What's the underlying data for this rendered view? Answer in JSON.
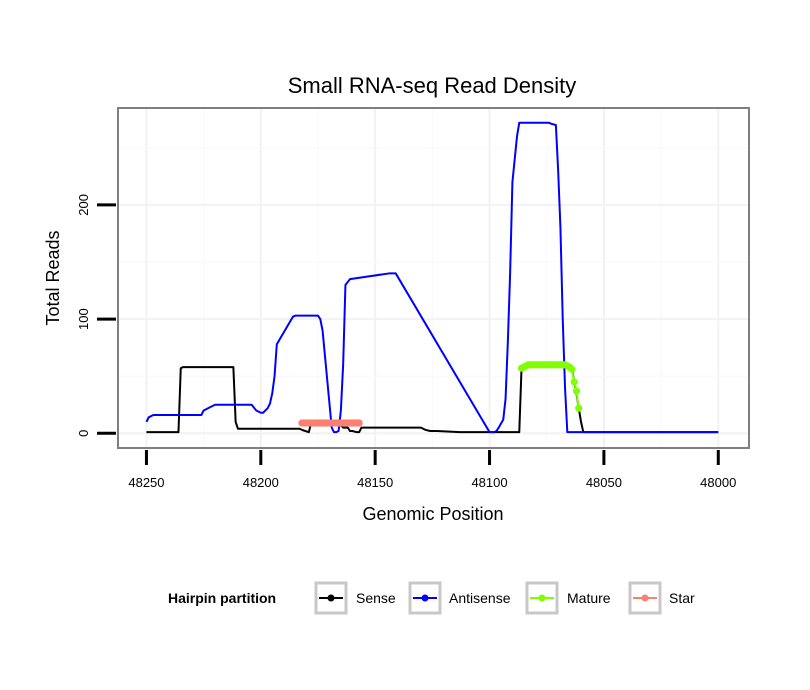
{
  "chart_data": {
    "type": "line",
    "title": "Small RNA-seq Read Density",
    "xlabel": "Genomic Position",
    "ylabel": "Total Reads",
    "xlim": [
      48262,
      47987
    ],
    "ylim": [
      -12,
      284
    ],
    "x_reversed": true,
    "x_ticks": [
      48250,
      48200,
      48150,
      48100,
      48050,
      48000
    ],
    "x_tick_labels": [
      "48250",
      "48200",
      "48150",
      "48100",
      "48050",
      "48000"
    ],
    "y_ticks": [
      0,
      100,
      200
    ],
    "y_tick_labels": [
      "0",
      "100",
      "200"
    ],
    "grid": true,
    "legend": {
      "title": "Hairpin partition",
      "position": "bottom",
      "entries": [
        {
          "label": "Sense",
          "color": "#000000"
        },
        {
          "label": "Antisense",
          "color": "#0000ff"
        },
        {
          "label": "Mature",
          "color": "#80ff00"
        },
        {
          "label": "Star",
          "color": "#fa8072"
        }
      ]
    },
    "series": [
      {
        "name": "Sense",
        "color": "#000000",
        "style": "line",
        "x": [
          48250,
          48236,
          48235,
          48234,
          48212,
          48211,
          48210,
          48183,
          48182,
          48179,
          48178,
          48168,
          48167,
          48165,
          48164,
          48162,
          48161,
          48160,
          48158,
          48157,
          48156,
          48130,
          48128,
          48126,
          48123,
          48113,
          48101,
          48087,
          48086,
          48085,
          48084,
          48066,
          48065,
          48064,
          48063,
          48062,
          48061,
          48060,
          48059,
          48000
        ],
        "y": [
          1,
          1,
          57,
          58,
          58,
          10,
          4,
          4,
          3,
          1,
          9,
          9,
          7,
          7,
          5,
          5,
          2,
          2,
          1,
          1,
          5,
          5,
          3,
          2,
          2,
          1,
          1,
          1,
          58,
          60,
          61,
          61,
          60,
          58,
          45,
          35,
          22,
          10,
          1,
          1
        ]
      },
      {
        "name": "Antisense",
        "color": "#0000ff",
        "style": "line",
        "x": [
          48250,
          48249,
          48247,
          48244,
          48226,
          48225,
          48222,
          48220,
          48209,
          48207,
          48204,
          48202,
          48200,
          48199,
          48197,
          48196,
          48195,
          48194,
          48193,
          48186,
          48185,
          48179,
          48178,
          48177,
          48176,
          48175,
          48174,
          48173,
          48169,
          48168,
          48167,
          48166,
          48165,
          48164,
          48163,
          48161,
          48144,
          48143,
          48142,
          48141,
          48100,
          48098,
          48097,
          48096,
          48094,
          48093,
          48092,
          48091,
          48090,
          48089,
          48088,
          48087,
          48080,
          48078,
          48077,
          48076,
          48075,
          48074,
          48073,
          48071,
          48070,
          48069,
          48068,
          48067,
          48066,
          48000
        ],
        "y": [
          10,
          14,
          16,
          16,
          16,
          20,
          23,
          25,
          25,
          25,
          25,
          20,
          18,
          18,
          22,
          26,
          35,
          50,
          78,
          102,
          103,
          103,
          103,
          103,
          103,
          103,
          100,
          90,
          5,
          1,
          1,
          2,
          20,
          60,
          130,
          135,
          140,
          140,
          140,
          140,
          1,
          1,
          2,
          5,
          12,
          30,
          80,
          140,
          220,
          240,
          260,
          272,
          272,
          272,
          272,
          272,
          272,
          272,
          271,
          270,
          230,
          180,
          100,
          40,
          1,
          1
        ]
      },
      {
        "name": "Mature",
        "color": "#80ff00",
        "style": "points",
        "x": [
          48086,
          48085,
          48084,
          48083,
          48082,
          48081,
          48080,
          48079,
          48078,
          48077,
          48076,
          48075,
          48074,
          48073,
          48072,
          48071,
          48070,
          48069,
          48068,
          48067,
          48066,
          48065,
          48064,
          48063,
          48062,
          48061
        ],
        "y": [
          57,
          58,
          59,
          60,
          60,
          60,
          60,
          60,
          60,
          60,
          60,
          60,
          60,
          60,
          60,
          60,
          60,
          60,
          60,
          60,
          59,
          58,
          56,
          45,
          37,
          22
        ]
      },
      {
        "name": "Star",
        "color": "#fa8072",
        "style": "points",
        "x": [
          48182,
          48181,
          48180,
          48179,
          48178,
          48177,
          48176,
          48175,
          48174,
          48173,
          48172,
          48171,
          48170,
          48169,
          48168,
          48167,
          48166,
          48165,
          48164,
          48163,
          48162,
          48161,
          48160,
          48159,
          48158,
          48157
        ],
        "y": [
          9,
          9,
          9,
          9,
          9,
          9,
          9,
          9,
          9,
          9,
          9,
          9,
          9,
          9,
          9,
          9,
          9,
          9,
          9,
          9,
          9,
          9,
          9,
          9,
          9,
          9
        ]
      }
    ]
  }
}
